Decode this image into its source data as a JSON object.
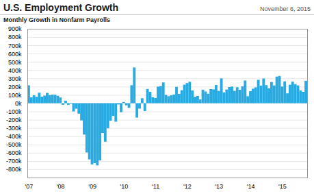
{
  "chart_data": {
    "type": "bar",
    "title": "U.S. Employment Growth",
    "subtitle": "Monthly Growth in Nonfarm Payrolls",
    "annotations": [
      "November 6, 2015"
    ],
    "color": "#29abe2",
    "grid": true,
    "categories": [
      "'07",
      null,
      null,
      null,
      null,
      null,
      null,
      null,
      null,
      null,
      null,
      null,
      "'08",
      null,
      null,
      null,
      null,
      null,
      null,
      null,
      null,
      null,
      null,
      null,
      "'09",
      null,
      null,
      null,
      null,
      null,
      null,
      null,
      null,
      null,
      null,
      null,
      "'10",
      null,
      null,
      null,
      null,
      null,
      null,
      null,
      null,
      null,
      null,
      null,
      "'11",
      null,
      null,
      null,
      null,
      null,
      null,
      null,
      null,
      null,
      null,
      null,
      "'12",
      null,
      null,
      null,
      null,
      null,
      null,
      null,
      null,
      null,
      null,
      null,
      "'13",
      null,
      null,
      null,
      null,
      null,
      null,
      null,
      null,
      null,
      null,
      null,
      "'14",
      null,
      null,
      null,
      null,
      null,
      null,
      null,
      null,
      null,
      null,
      null,
      "'15",
      null,
      null,
      null,
      null,
      null,
      null,
      null,
      null,
      null
    ],
    "values": [
      216000,
      71000,
      97000,
      78000,
      126000,
      79000,
      91000,
      124000,
      98000,
      104000,
      102000,
      89000,
      69000,
      -20000,
      30000,
      -20000,
      -8000,
      -100000,
      -67000,
      -127000,
      -208000,
      -380000,
      -597000,
      -681000,
      -741000,
      -726000,
      -753000,
      -692000,
      -361000,
      -467000,
      -304000,
      -212000,
      -154000,
      -224000,
      -16000,
      -109000,
      14000,
      -26000,
      -57000,
      217000,
      432000,
      -175000,
      -66000,
      60000,
      -95000,
      172000,
      138000,
      72000,
      63000,
      200000,
      207000,
      251000,
      100000,
      84000,
      96000,
      104000,
      197000,
      112000,
      157000,
      223000,
      243000,
      259000,
      154000,
      77000,
      87000,
      45000,
      163000,
      141000,
      114000,
      170000,
      167000,
      219000,
      148000,
      300000,
      131000,
      165000,
      195000,
      201000,
      149000,
      193000,
      163000,
      204000,
      274000,
      84000,
      144000,
      175000,
      191000,
      282000,
      213000,
      298000,
      218000,
      180000,
      256000,
      214000,
      321000,
      329000,
      201000,
      264000,
      119000,
      223000,
      260000,
      231000,
      215000,
      153000,
      137000,
      271000
    ],
    "ylim": [
      -900000,
      900000
    ],
    "yticks": [
      {
        "value": -800000,
        "label": "-800k"
      },
      {
        "value": -700000,
        "label": "-700k"
      },
      {
        "value": -600000,
        "label": "-600k"
      },
      {
        "value": -500000,
        "label": "-500k"
      },
      {
        "value": -400000,
        "label": "-400k"
      },
      {
        "value": -300000,
        "label": "-300k"
      },
      {
        "value": -200000,
        "label": "-200k"
      },
      {
        "value": -100000,
        "label": "-100k"
      },
      {
        "value": 0,
        "label": "0k"
      },
      {
        "value": 100000,
        "label": "100k"
      },
      {
        "value": 200000,
        "label": "200k"
      },
      {
        "value": 300000,
        "label": "300k"
      },
      {
        "value": 400000,
        "label": "400k"
      },
      {
        "value": 500000,
        "label": "500k"
      },
      {
        "value": 600000,
        "label": "600k"
      },
      {
        "value": 700000,
        "label": "700k"
      },
      {
        "value": 800000,
        "label": "800k"
      },
      {
        "value": 900000,
        "label": "900k"
      }
    ]
  }
}
